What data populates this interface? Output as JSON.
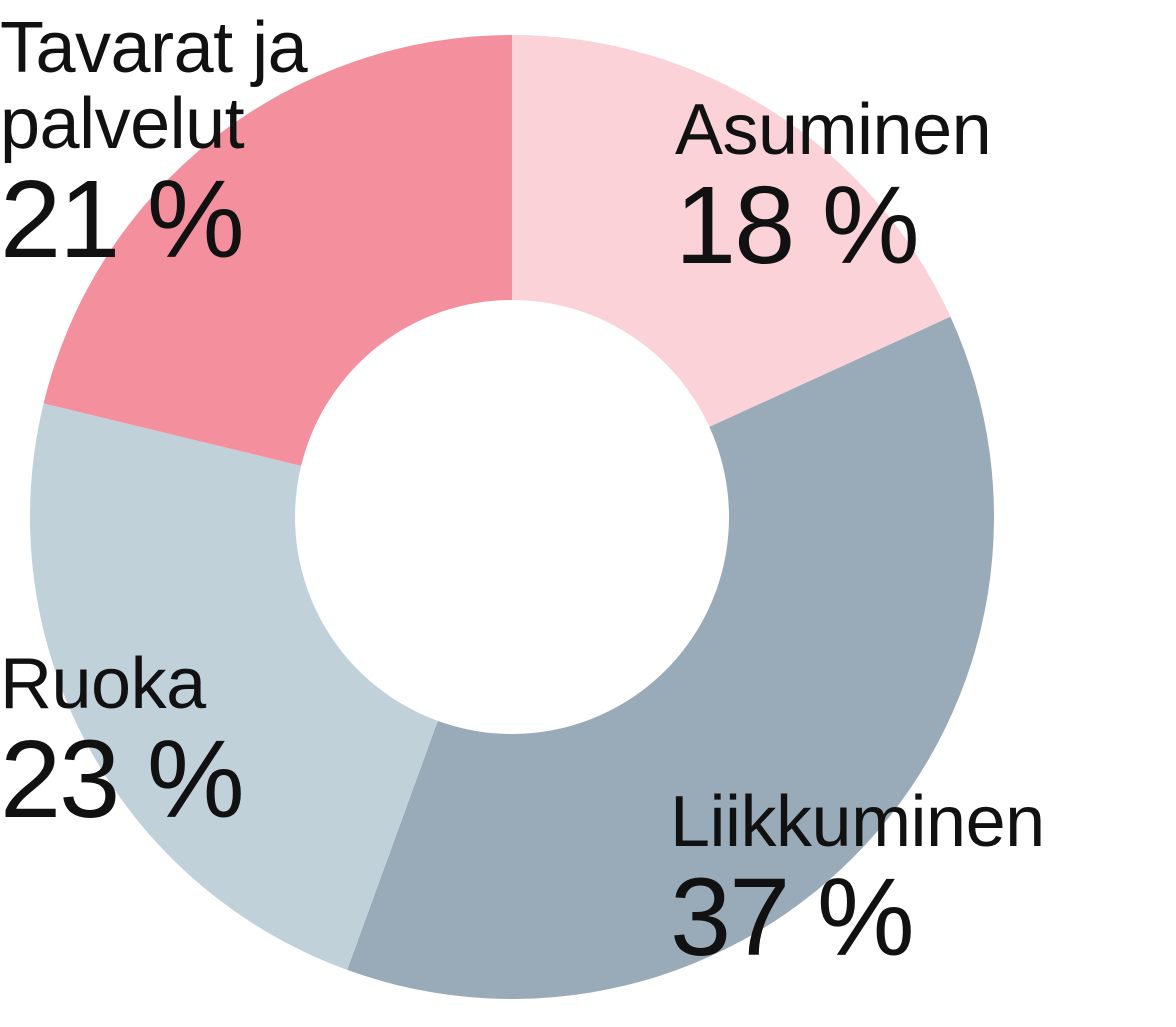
{
  "chart_data": {
    "type": "pie",
    "donut": true,
    "slices": [
      {
        "label": "Asuminen",
        "value": 18,
        "display": "18 %",
        "color": "#fad2d7"
      },
      {
        "label": "Liikkuminen",
        "value": 37,
        "display": "37 %",
        "color": "#99abb8"
      },
      {
        "label": "Ruoka",
        "value": 23,
        "display": "23 %",
        "color": "#c1d1da"
      },
      {
        "label": "Tavarat ja palvelut",
        "value": 21,
        "display": "21 %",
        "color": "#f48f9e"
      }
    ],
    "start_angle": "12 o'clock",
    "direction": "clockwise",
    "title": "",
    "legend": "none"
  }
}
